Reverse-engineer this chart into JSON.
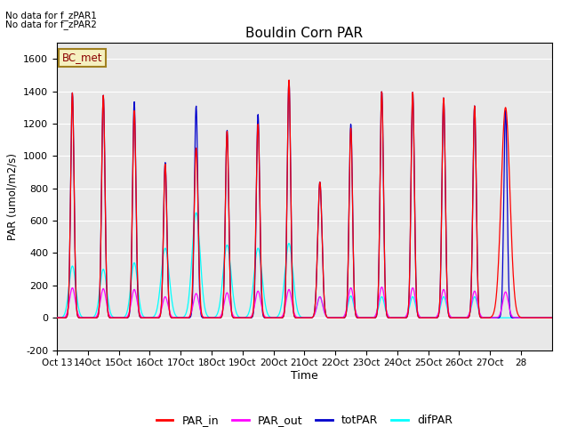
{
  "title": "Bouldin Corn PAR",
  "ylabel": "PAR (umol/m2/s)",
  "xlabel": "Time",
  "ylim": [
    -200,
    1700
  ],
  "yticks": [
    -200,
    0,
    200,
    400,
    600,
    800,
    1000,
    1200,
    1400,
    1600
  ],
  "no_data_text1": "No data for f_zPAR1",
  "no_data_text2": "No data for f_zPAR2",
  "legend_label": "BC_met",
  "colors": {
    "PAR_in": "#ff0000",
    "PAR_out": "#ff00ff",
    "totPAR": "#0000cc",
    "difPAR": "#00ffff"
  },
  "background_color": "#e8e8e8",
  "n_days": 15,
  "day_start": 13,
  "xtick_labels": [
    "Oct 13",
    "14Oct",
    "15Oct",
    "16Oct",
    "17Oct",
    "18Oct",
    "19Oct",
    "20Oct",
    "21Oct",
    "22Oct",
    "23Oct",
    "24Oct",
    "25Oct",
    "26Oct",
    "27Oct",
    "28"
  ],
  "totPAR_peaks": [
    1390,
    1375,
    1335,
    960,
    1310,
    1160,
    1260,
    1470,
    840,
    1200,
    1400,
    1395,
    1360,
    1310,
    1280,
    0
  ],
  "PAR_in_peaks": [
    1390,
    1375,
    1280,
    950,
    1050,
    1155,
    1200,
    1475,
    840,
    1175,
    1400,
    1395,
    1360,
    1310,
    1300,
    0
  ],
  "PAR_out_peaks": [
    185,
    180,
    175,
    130,
    150,
    155,
    165,
    175,
    130,
    185,
    190,
    185,
    175,
    165,
    160,
    0
  ],
  "difPAR_peaks": [
    320,
    300,
    340,
    430,
    650,
    450,
    430,
    460,
    130,
    135,
    130,
    130,
    130,
    130,
    20,
    0
  ],
  "totPAR_widths": [
    0.055,
    0.055,
    0.055,
    0.055,
    0.055,
    0.055,
    0.055,
    0.055,
    0.07,
    0.055,
    0.055,
    0.055,
    0.055,
    0.055,
    0.055,
    0.055
  ],
  "PAR_in_widths": [
    0.055,
    0.055,
    0.058,
    0.055,
    0.065,
    0.055,
    0.06,
    0.055,
    0.07,
    0.055,
    0.055,
    0.055,
    0.055,
    0.055,
    0.14,
    0.055
  ],
  "PAR_out_widths": [
    0.09,
    0.09,
    0.09,
    0.09,
    0.09,
    0.09,
    0.09,
    0.09,
    0.09,
    0.09,
    0.09,
    0.09,
    0.09,
    0.09,
    0.09,
    0.09
  ],
  "difPAR_widths": [
    0.11,
    0.11,
    0.11,
    0.13,
    0.13,
    0.13,
    0.13,
    0.13,
    0.09,
    0.09,
    0.09,
    0.09,
    0.09,
    0.09,
    0.055,
    0.055
  ]
}
